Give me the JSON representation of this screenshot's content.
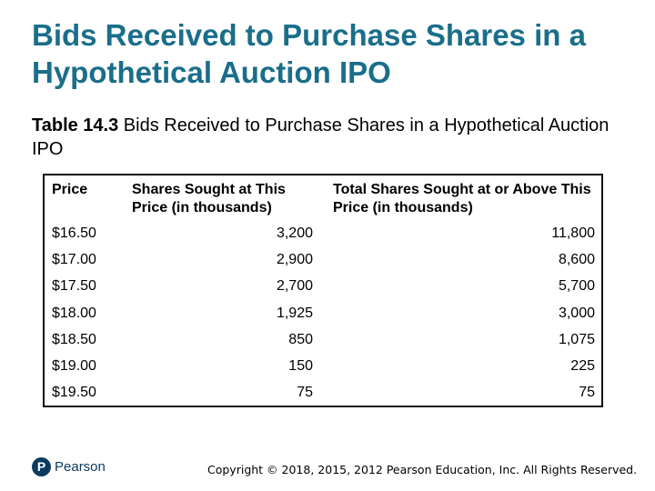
{
  "slide": {
    "title": "Bids Received to Purchase Shares in a Hypothetical Auction IPO"
  },
  "caption": {
    "label": "Table 14.3",
    "text": " Bids Received to Purchase Shares in a Hypothetical Auction IPO"
  },
  "table": {
    "headers": [
      "Price",
      "Shares Sought at This Price (in thousands)",
      "Total Shares Sought at or Above This Price (in thousands)"
    ],
    "rows": [
      [
        "$16.50",
        "3,200",
        "11,800"
      ],
      [
        "$17.00",
        "2,900",
        "8,600"
      ],
      [
        "$17.50",
        "2,700",
        "5,700"
      ],
      [
        "$18.00",
        "1,925",
        "3,000"
      ],
      [
        "$18.50",
        "850",
        "1,075"
      ],
      [
        "$19.00",
        "150",
        "225"
      ],
      [
        "$19.50",
        "75",
        "75"
      ]
    ]
  },
  "footer": {
    "logo_letter": "P",
    "logo_text": "Pearson",
    "copyright": "Copyright © 2018, 2015, 2012 Pearson Education, Inc. All Rights Reserved."
  },
  "colors": {
    "title": "#1a6e8a",
    "logo": "#0b3b60"
  }
}
